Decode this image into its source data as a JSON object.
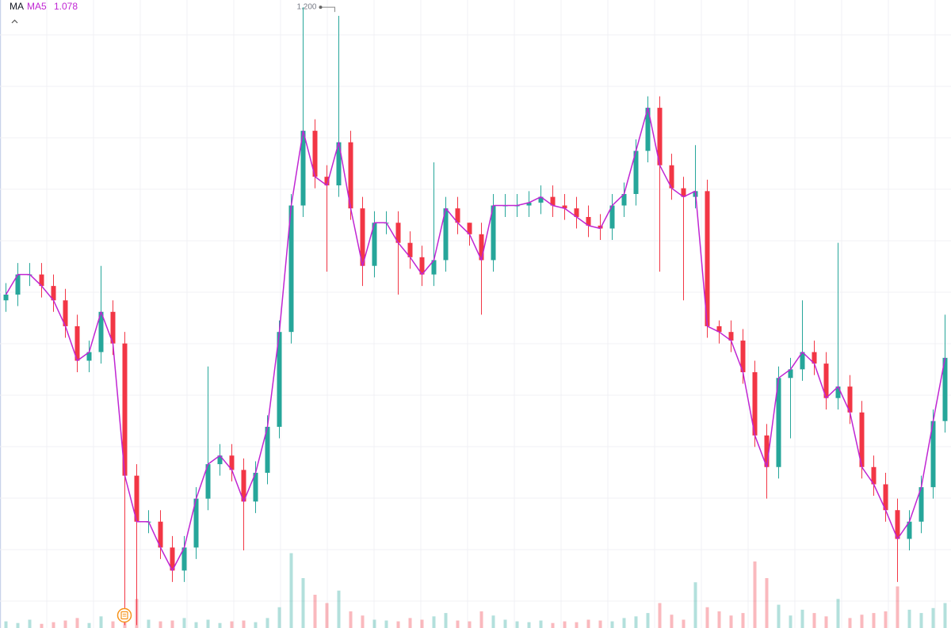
{
  "chart_data": {
    "type": "candlestick",
    "indicator": "MA",
    "open": [
      1.098,
      1.1,
      1.107,
      1.107,
      1.103,
      1.098,
      1.089,
      1.077,
      1.08,
      1.094,
      1.083,
      1.037,
      1.021,
      1.021,
      1.012,
      1.004,
      1.012,
      1.029,
      1.041,
      1.044,
      1.039,
      1.028,
      1.038,
      1.054,
      1.087,
      1.131,
      1.157,
      1.141,
      1.138,
      1.153,
      1.13,
      1.11,
      1.125,
      1.125,
      1.118,
      1.113,
      1.107,
      1.112,
      1.13,
      1.125,
      1.121,
      1.112,
      1.131,
      1.131,
      1.131,
      1.132,
      1.134,
      1.131,
      1.13,
      1.127,
      1.124,
      1.123,
      1.131,
      1.135,
      1.15,
      1.165,
      1.145,
      1.137,
      1.134,
      1.136,
      1.089,
      1.087,
      1.084,
      1.073,
      1.051,
      1.04,
      1.071,
      1.074,
      1.08,
      1.076,
      1.064,
      1.068,
      1.059,
      1.04,
      1.034,
      1.025,
      1.015,
      1.021,
      1.033,
      1.056
    ],
    "high": [
      1.104,
      1.111,
      1.111,
      1.111,
      1.107,
      1.102,
      1.093,
      1.084,
      1.11,
      1.098,
      1.087,
      1.041,
      1.025,
      1.025,
      1.016,
      1.016,
      1.033,
      1.075,
      1.048,
      1.048,
      1.043,
      1.042,
      1.058,
      1.091,
      1.135,
      1.2,
      1.161,
      1.145,
      1.197,
      1.157,
      1.134,
      1.129,
      1.129,
      1.129,
      1.122,
      1.117,
      1.146,
      1.134,
      1.134,
      1.125,
      1.125,
      1.135,
      1.135,
      1.135,
      1.136,
      1.138,
      1.138,
      1.135,
      1.134,
      1.131,
      1.128,
      1.135,
      1.139,
      1.154,
      1.169,
      1.169,
      1.149,
      1.141,
      1.152,
      1.14,
      1.091,
      1.091,
      1.088,
      1.077,
      1.055,
      1.075,
      1.078,
      1.098,
      1.084,
      1.08,
      1.118,
      1.072,
      1.063,
      1.044,
      1.038,
      1.029,
      1.025,
      1.037,
      1.06,
      1.093
    ],
    "low": [
      1.094,
      1.096,
      1.103,
      1.099,
      1.094,
      1.085,
      1.073,
      1.073,
      1.076,
      1.079,
      0.985,
      0.985,
      1.017,
      1.008,
      1.0,
      1.0,
      1.008,
      1.025,
      1.037,
      1.035,
      1.011,
      1.024,
      1.034,
      1.05,
      1.083,
      1.127,
      1.137,
      1.108,
      1.134,
      1.126,
      1.103,
      1.106,
      1.121,
      1.1,
      1.109,
      1.103,
      1.103,
      1.108,
      1.121,
      1.117,
      1.093,
      1.108,
      1.127,
      1.127,
      1.127,
      1.128,
      1.127,
      1.126,
      1.123,
      1.12,
      1.119,
      1.119,
      1.127,
      1.131,
      1.146,
      1.108,
      1.133,
      1.098,
      1.13,
      1.085,
      1.083,
      1.08,
      1.069,
      1.047,
      1.029,
      1.036,
      1.05,
      1.07,
      1.072,
      1.06,
      1.06,
      1.055,
      1.036,
      1.03,
      1.021,
      1.0,
      1.011,
      1.017,
      1.029,
      1.052
    ],
    "close": [
      1.1,
      1.107,
      1.107,
      1.103,
      1.098,
      1.089,
      1.077,
      1.08,
      1.094,
      1.083,
      1.037,
      1.021,
      1.021,
      1.012,
      1.004,
      1.012,
      1.029,
      1.041,
      1.044,
      1.039,
      1.028,
      1.038,
      1.054,
      1.087,
      1.131,
      1.157,
      1.141,
      1.138,
      1.153,
      1.13,
      1.11,
      1.125,
      1.125,
      1.118,
      1.113,
      1.107,
      1.112,
      1.13,
      1.125,
      1.121,
      1.112,
      1.131,
      1.131,
      1.131,
      1.132,
      1.134,
      1.131,
      1.13,
      1.127,
      1.124,
      1.123,
      1.131,
      1.135,
      1.15,
      1.165,
      1.145,
      1.137,
      1.134,
      1.136,
      1.089,
      1.087,
      1.084,
      1.073,
      1.051,
      1.04,
      1.071,
      1.074,
      1.08,
      1.076,
      1.064,
      1.068,
      1.059,
      1.04,
      1.034,
      1.025,
      1.015,
      1.021,
      1.033,
      1.056,
      1.078
    ],
    "volume": [
      8,
      6,
      10,
      5,
      7,
      9,
      12,
      6,
      14,
      8,
      20,
      35,
      10,
      8,
      9,
      12,
      7,
      10,
      6,
      8,
      9,
      7,
      12,
      25,
      90,
      60,
      40,
      30,
      45,
      20,
      15,
      10,
      9,
      8,
      12,
      10,
      14,
      18,
      9,
      8,
      20,
      15,
      10,
      8,
      7,
      9,
      6,
      8,
      7,
      10,
      9,
      8,
      12,
      14,
      18,
      30,
      16,
      10,
      55,
      25,
      20,
      15,
      18,
      80,
      60,
      28,
      15,
      22,
      18,
      14,
      35,
      12,
      16,
      18,
      20,
      50,
      22,
      18,
      24,
      30
    ],
    "up_color": "#26a69a",
    "down_color": "#f23645",
    "ylim": [
      0.984,
      1.2025
    ],
    "volume_lim": [
      0,
      100
    ],
    "ma": {
      "name": "MA5",
      "color": "#c026d3",
      "values": [
        1.1,
        1.107,
        1.107,
        1.103,
        1.098,
        1.089,
        1.077,
        1.08,
        1.094,
        1.083,
        1.037,
        1.021,
        1.021,
        1.012,
        1.004,
        1.012,
        1.029,
        1.041,
        1.044,
        1.039,
        1.028,
        1.038,
        1.054,
        1.087,
        1.131,
        1.157,
        1.141,
        1.138,
        1.153,
        1.13,
        1.11,
        1.125,
        1.125,
        1.118,
        1.113,
        1.107,
        1.112,
        1.13,
        1.125,
        1.121,
        1.112,
        1.131,
        1.131,
        1.131,
        1.132,
        1.134,
        1.131,
        1.13,
        1.127,
        1.124,
        1.123,
        1.131,
        1.135,
        1.15,
        1.165,
        1.145,
        1.137,
        1.134,
        1.136,
        1.089,
        1.087,
        1.084,
        1.073,
        1.051,
        1.04,
        1.071,
        1.074,
        1.08,
        1.076,
        1.064,
        1.068,
        1.059,
        1.04,
        1.034,
        1.025,
        1.015,
        1.021,
        1.033,
        1.056,
        1.078
      ]
    },
    "max_marker": {
      "value": 1.2,
      "label": "1.200"
    },
    "grid": true
  }
}
